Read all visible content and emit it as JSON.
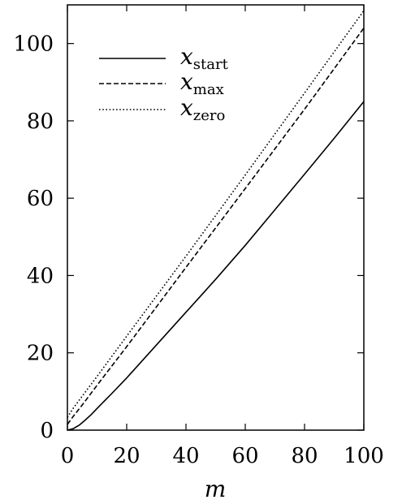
{
  "chart_data": {
    "type": "line",
    "title": "",
    "xlabel": "m",
    "ylabel": "",
    "xlim": [
      0,
      100
    ],
    "ylim": [
      0,
      110
    ],
    "xticks": [
      0,
      20,
      40,
      60,
      80,
      100
    ],
    "yticks": [
      0,
      20,
      40,
      60,
      80,
      100
    ],
    "xtick_labels": [
      "0",
      "20",
      "40",
      "60",
      "80",
      "100"
    ],
    "ytick_labels": [
      "0",
      "20",
      "40",
      "60",
      "80",
      "100"
    ],
    "grid": false,
    "legend_placement": "top-left",
    "series": [
      {
        "name_var": "x",
        "name_sub": "start",
        "style": "solid",
        "x": [
          0,
          2,
          4,
          6,
          8,
          10,
          15,
          20,
          30,
          40,
          50,
          60,
          70,
          80,
          90,
          100
        ],
        "y": [
          0,
          0.4,
          1.3,
          2.6,
          4.0,
          5.6,
          9.5,
          13.5,
          22.0,
          30.5,
          39.0,
          47.8,
          57.0,
          66.2,
          75.5,
          85
        ]
      },
      {
        "name_var": "x",
        "name_sub": "max",
        "style": "dashed",
        "x": [
          0,
          2,
          5,
          10,
          20,
          40,
          60,
          80,
          100
        ],
        "y": [
          1.5,
          3.6,
          6.5,
          11.6,
          21.6,
          42.1,
          62.5,
          83.0,
          104
        ]
      },
      {
        "name_var": "x",
        "name_sub": "zero",
        "style": "dotted",
        "x": [
          0,
          2,
          5,
          10,
          20,
          40,
          60,
          80,
          100
        ],
        "y": [
          3.3,
          5.7,
          8.8,
          13.9,
          24.3,
          45.0,
          66.0,
          87.2,
          108.5
        ]
      }
    ]
  }
}
